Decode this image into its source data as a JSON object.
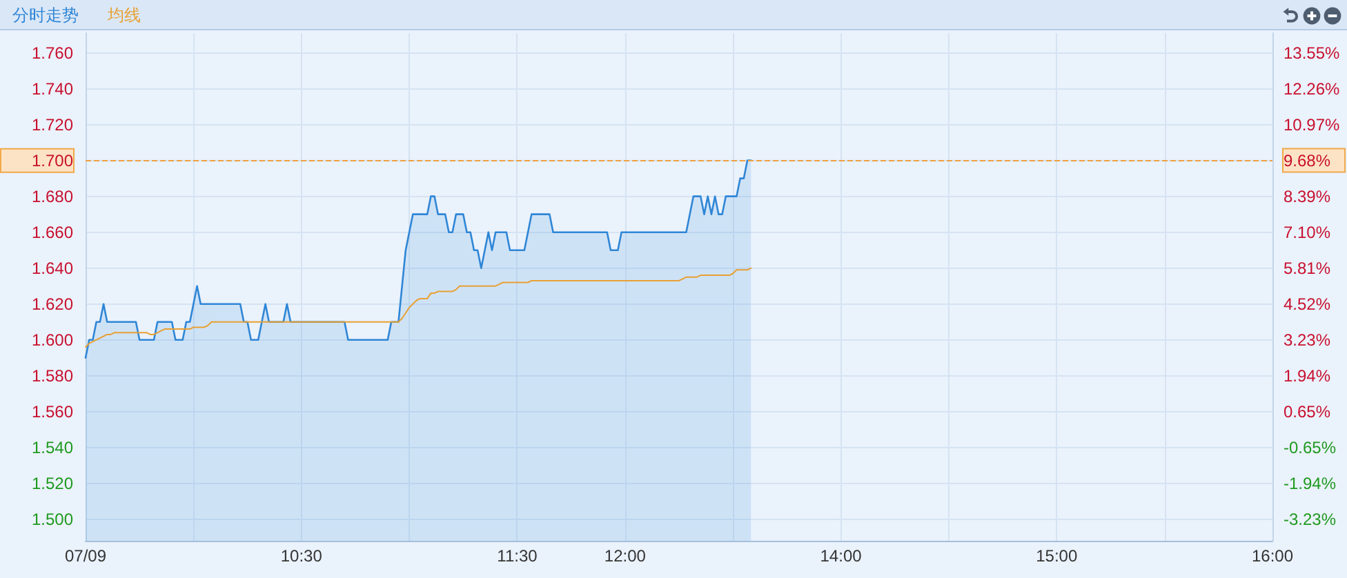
{
  "chart_data": {
    "type": "area",
    "categories": [
      "07/09",
      null,
      null,
      null,
      null,
      null,
      null,
      null,
      null,
      null,
      null,
      null,
      null,
      null,
      null,
      null,
      null,
      null,
      null,
      null,
      null,
      null,
      null,
      null,
      null,
      null,
      null,
      null,
      null,
      null,
      null,
      null,
      null,
      null,
      null,
      null,
      null,
      null,
      null,
      null,
      null,
      null,
      null,
      null,
      null,
      null,
      null,
      null,
      null,
      null,
      null,
      null,
      null,
      null,
      null,
      null,
      null,
      null,
      null,
      null,
      "10:30",
      null,
      null,
      null,
      null,
      null,
      null,
      null,
      null,
      null,
      null,
      null,
      null,
      null,
      null,
      null,
      null,
      null,
      null,
      null,
      null,
      null,
      null,
      null,
      null,
      null,
      null,
      null,
      null,
      null,
      null,
      null,
      null,
      null,
      null,
      null,
      null,
      null,
      null,
      null,
      null,
      null,
      null,
      null,
      null,
      null,
      null,
      null,
      null,
      null,
      null,
      null,
      null,
      null,
      null,
      null,
      null,
      null,
      null,
      null,
      "11:30",
      null,
      null,
      null,
      null,
      null,
      null,
      null,
      null,
      null,
      null,
      null,
      null,
      null,
      null,
      null,
      null,
      null,
      null,
      null,
      null,
      null,
      null,
      null,
      null,
      null,
      null,
      null,
      null,
      null,
      "12:00",
      null,
      null,
      null,
      null,
      null,
      null,
      null,
      null,
      null,
      null,
      null,
      null,
      null,
      null,
      null,
      null,
      null,
      null,
      null,
      null,
      null,
      null,
      null,
      null,
      null,
      null,
      null,
      null,
      null,
      null,
      null,
      null,
      null,
      null,
      null,
      null,
      null,
      null,
      null,
      null,
      null,
      null,
      null,
      null,
      null,
      null,
      null,
      null,
      null,
      null,
      null,
      null,
      null,
      null,
      null,
      null,
      null,
      null,
      null,
      "14:00",
      null,
      null,
      null,
      null,
      null,
      null,
      null,
      null,
      null,
      null,
      null,
      null,
      null,
      null,
      null,
      null,
      null,
      null,
      null,
      null,
      null,
      null,
      null,
      null,
      null,
      null,
      null,
      null,
      null,
      null,
      null,
      null,
      null,
      null,
      null,
      null,
      null,
      null,
      null,
      null,
      null,
      null,
      null,
      null,
      null,
      null,
      null,
      null,
      null,
      null,
      null,
      null,
      null,
      null,
      null,
      null,
      null,
      null,
      null,
      "15:00",
      null,
      null,
      null,
      null,
      null,
      null,
      null,
      null,
      null,
      null,
      null,
      null,
      null,
      null,
      null,
      null,
      null,
      null,
      null,
      null,
      null,
      null,
      null,
      null,
      null,
      null,
      null,
      null,
      null,
      null,
      null,
      null,
      null,
      null,
      null,
      null,
      null,
      null,
      null,
      null,
      null,
      null,
      null,
      null,
      null,
      null,
      null,
      null,
      null,
      null,
      null,
      null,
      null,
      null,
      null,
      null,
      null,
      null,
      null,
      "16:00"
    ],
    "series": [
      {
        "name": "分时走势",
        "color": "#2f86d6",
        "values": [
          1.59,
          1.6,
          1.6,
          1.61,
          1.61,
          1.62,
          1.61,
          1.61,
          1.61,
          1.61,
          1.61,
          1.61,
          1.61,
          1.61,
          1.61,
          1.6,
          1.6,
          1.6,
          1.6,
          1.6,
          1.61,
          1.61,
          1.61,
          1.61,
          1.61,
          1.6,
          1.6,
          1.6,
          1.61,
          1.61,
          1.62,
          1.63,
          1.62,
          1.62,
          1.62,
          1.62,
          1.62,
          1.62,
          1.62,
          1.62,
          1.62,
          1.62,
          1.62,
          1.62,
          1.61,
          1.61,
          1.6,
          1.6,
          1.6,
          1.61,
          1.62,
          1.61,
          1.61,
          1.61,
          1.61,
          1.61,
          1.62,
          1.61,
          1.61,
          1.61,
          1.61,
          1.61,
          1.61,
          1.61,
          1.61,
          1.61,
          1.61,
          1.61,
          1.61,
          1.61,
          1.61,
          1.61,
          1.61,
          1.6,
          1.6,
          1.6,
          1.6,
          1.6,
          1.6,
          1.6,
          1.6,
          1.6,
          1.6,
          1.6,
          1.6,
          1.61,
          1.61,
          1.61,
          1.63,
          1.65,
          1.66,
          1.67,
          1.67,
          1.67,
          1.67,
          1.67,
          1.68,
          1.68,
          1.67,
          1.67,
          1.67,
          1.66,
          1.66,
          1.67,
          1.67,
          1.67,
          1.66,
          1.66,
          1.65,
          1.65,
          1.64,
          1.65,
          1.66,
          1.65,
          1.66,
          1.66,
          1.66,
          1.66,
          1.65,
          1.65,
          1.65,
          1.65,
          1.65,
          1.66,
          1.67,
          1.67,
          1.67,
          1.67,
          1.67,
          1.67,
          1.66,
          1.66,
          1.66,
          1.66,
          1.66,
          1.66,
          1.66,
          1.66,
          1.66,
          1.66,
          1.66,
          1.66,
          1.66,
          1.66,
          1.66,
          1.66,
          1.65,
          1.65,
          1.65,
          1.66,
          1.66,
          1.66,
          1.66,
          1.66,
          1.66,
          1.66,
          1.66,
          1.66,
          1.66,
          1.66,
          1.66,
          1.66,
          1.66,
          1.66,
          1.66,
          1.66,
          1.66,
          1.66,
          1.67,
          1.68,
          1.68,
          1.68,
          1.67,
          1.68,
          1.67,
          1.68,
          1.67,
          1.67,
          1.68,
          1.68,
          1.68,
          1.68,
          1.69,
          1.69,
          1.7,
          1.7,
          null,
          null,
          null,
          null,
          null,
          null,
          null,
          null,
          null,
          null,
          null,
          null,
          null,
          null,
          null,
          null,
          null,
          null,
          null,
          null,
          null,
          null,
          null,
          null,
          null,
          null,
          null,
          null,
          null,
          null,
          null,
          null,
          null,
          null,
          null,
          null,
          null,
          null,
          null,
          null,
          null,
          null,
          null,
          null,
          null,
          null,
          null,
          null,
          null,
          null,
          null,
          null,
          null,
          null,
          null,
          null,
          null,
          null,
          null,
          null,
          null,
          null,
          null,
          null,
          null,
          null,
          null,
          null,
          null,
          null,
          null,
          null,
          null,
          null,
          null,
          null,
          null,
          null,
          null,
          null,
          null,
          null,
          null,
          null,
          null,
          null,
          null,
          null,
          null,
          null,
          null,
          null,
          null,
          null,
          null,
          null,
          null,
          null,
          null,
          null,
          null,
          null,
          null,
          null,
          null,
          null,
          null,
          null,
          null,
          null,
          null,
          null,
          null,
          null,
          null,
          null,
          null,
          null,
          null,
          null,
          null,
          null,
          null,
          null,
          null,
          null,
          null,
          null,
          null,
          null,
          null,
          null,
          null,
          null,
          null,
          null,
          null,
          null,
          null,
          null,
          null,
          null,
          null,
          null,
          null
        ]
      },
      {
        "name": "均线",
        "type": "line",
        "color": "#e8a033",
        "values": [
          1.596,
          1.598,
          1.599,
          1.6,
          1.601,
          1.602,
          1.603,
          1.603,
          1.604,
          1.604,
          1.604,
          1.604,
          1.604,
          1.604,
          1.604,
          1.604,
          1.604,
          1.604,
          1.603,
          1.603,
          1.604,
          1.605,
          1.606,
          1.606,
          1.606,
          1.606,
          1.606,
          1.606,
          1.606,
          1.606,
          1.607,
          1.607,
          1.607,
          1.607,
          1.608,
          1.61,
          1.61,
          1.61,
          1.61,
          1.61,
          1.61,
          1.61,
          1.61,
          1.61,
          1.61,
          1.61,
          1.61,
          1.61,
          1.61,
          1.61,
          1.61,
          1.61,
          1.61,
          1.61,
          1.61,
          1.61,
          1.61,
          1.61,
          1.61,
          1.61,
          1.61,
          1.61,
          1.61,
          1.61,
          1.61,
          1.61,
          1.61,
          1.61,
          1.61,
          1.61,
          1.61,
          1.61,
          1.61,
          1.61,
          1.61,
          1.61,
          1.61,
          1.61,
          1.61,
          1.61,
          1.61,
          1.61,
          1.61,
          1.61,
          1.61,
          1.61,
          1.61,
          1.61,
          1.612,
          1.615,
          1.618,
          1.62,
          1.622,
          1.623,
          1.623,
          1.623,
          1.626,
          1.626,
          1.627,
          1.627,
          1.627,
          1.627,
          1.627,
          1.628,
          1.63,
          1.63,
          1.63,
          1.63,
          1.63,
          1.63,
          1.63,
          1.63,
          1.63,
          1.63,
          1.63,
          1.631,
          1.632,
          1.632,
          1.632,
          1.632,
          1.632,
          1.632,
          1.632,
          1.632,
          1.633,
          1.633,
          1.633,
          1.633,
          1.633,
          1.633,
          1.633,
          1.633,
          1.633,
          1.633,
          1.633,
          1.633,
          1.633,
          1.633,
          1.633,
          1.633,
          1.633,
          1.633,
          1.633,
          1.633,
          1.633,
          1.633,
          1.633,
          1.633,
          1.633,
          1.633,
          1.633,
          1.633,
          1.633,
          1.633,
          1.633,
          1.633,
          1.633,
          1.633,
          1.633,
          1.633,
          1.633,
          1.633,
          1.633,
          1.633,
          1.633,
          1.633,
          1.634,
          1.635,
          1.635,
          1.635,
          1.635,
          1.636,
          1.636,
          1.636,
          1.636,
          1.636,
          1.636,
          1.636,
          1.636,
          1.636,
          1.637,
          1.639,
          1.639,
          1.639,
          1.639,
          1.64,
          null,
          null,
          null,
          null,
          null,
          null,
          null,
          null,
          null,
          null,
          null,
          null,
          null,
          null,
          null,
          null,
          null,
          null,
          null,
          null,
          null,
          null,
          null,
          null,
          null,
          null,
          null,
          null,
          null,
          null,
          null,
          null,
          null,
          null,
          null,
          null,
          null,
          null,
          null,
          null,
          null,
          null,
          null,
          null,
          null,
          null,
          null,
          null,
          null,
          null,
          null,
          null,
          null,
          null,
          null,
          null,
          null,
          null,
          null,
          null,
          null,
          null,
          null,
          null,
          null,
          null,
          null,
          null,
          null,
          null,
          null,
          null,
          null,
          null,
          null,
          null,
          null,
          null,
          null,
          null,
          null,
          null,
          null,
          null,
          null,
          null,
          null,
          null,
          null,
          null,
          null,
          null,
          null,
          null,
          null,
          null,
          null,
          null,
          null,
          null,
          null,
          null,
          null,
          null,
          null,
          null,
          null,
          null,
          null,
          null,
          null,
          null,
          null,
          null,
          null,
          null,
          null,
          null,
          null,
          null,
          null,
          null,
          null,
          null,
          null,
          null,
          null,
          null,
          null,
          null,
          null,
          null,
          null,
          null,
          null,
          null,
          null,
          null,
          null,
          null,
          null,
          null,
          null,
          null,
          null
        ]
      }
    ],
    "ylim": [
      1.488,
      1.771
    ],
    "yticks": [
      {
        "value": 1.5,
        "label": "1.500"
      },
      {
        "value": 1.52,
        "label": "1.520"
      },
      {
        "value": 1.54,
        "label": "1.540"
      },
      {
        "value": 1.56,
        "label": "1.560"
      },
      {
        "value": 1.58,
        "label": "1.580"
      },
      {
        "value": 1.6,
        "label": "1.600"
      },
      {
        "value": 1.62,
        "label": "1.620"
      },
      {
        "value": 1.64,
        "label": "1.640"
      },
      {
        "value": 1.66,
        "label": "1.660"
      },
      {
        "value": 1.68,
        "label": "1.680"
      },
      {
        "value": 1.7,
        "label": "1.700"
      },
      {
        "value": 1.72,
        "label": "1.720"
      },
      {
        "value": 1.74,
        "label": "1.740"
      },
      {
        "value": 1.76,
        "label": "1.760"
      }
    ],
    "y2lim": [
      -4.0,
      14.26
    ],
    "y2ticks": [
      {
        "value": -3.23,
        "label": "-3.23%"
      },
      {
        "value": -1.94,
        "label": "-1.94%"
      },
      {
        "value": -0.65,
        "label": "-0.65%"
      },
      {
        "value": 0.65,
        "label": "0.65%"
      },
      {
        "value": 1.94,
        "label": "1.94%"
      },
      {
        "value": 3.23,
        "label": "3.23%"
      },
      {
        "value": 4.52,
        "label": "4.52%"
      },
      {
        "value": 5.81,
        "label": "5.81%"
      },
      {
        "value": 7.1,
        "label": "7.10%"
      },
      {
        "value": 8.39,
        "label": "8.39%"
      },
      {
        "value": 9.68,
        "label": "9.68%"
      },
      {
        "value": 10.97,
        "label": "10.97%"
      },
      {
        "value": 12.26,
        "label": "12.26%"
      },
      {
        "value": 13.55,
        "label": "13.55%"
      }
    ],
    "ref_lines": [
      {
        "axis": "y",
        "value": 1.7,
        "color": "#f0a040",
        "line_style": "dashed"
      }
    ],
    "grid": true,
    "legend": "top left"
  }
}
